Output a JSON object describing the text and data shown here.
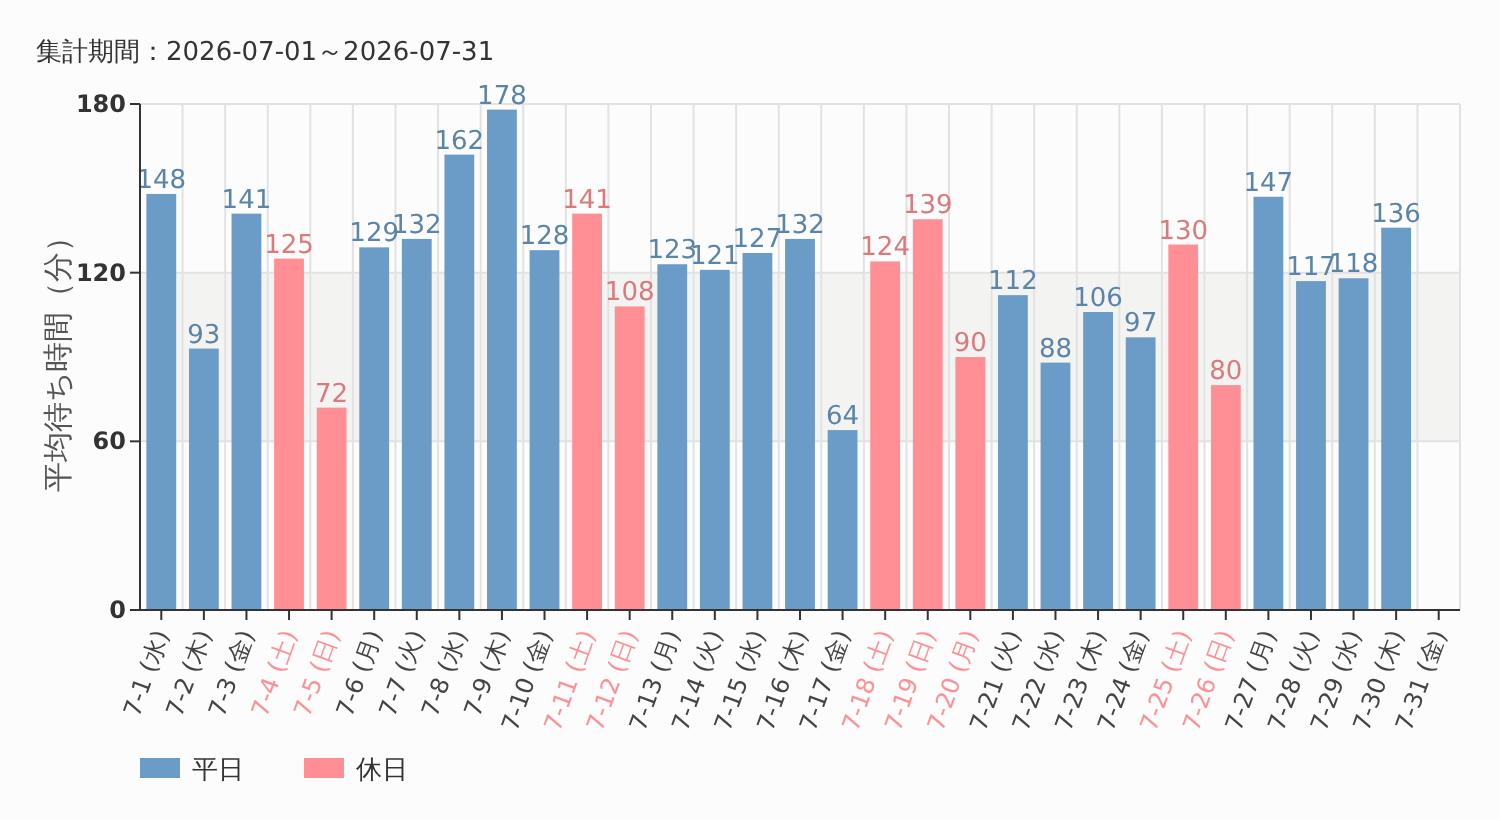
{
  "chart_data": {
    "type": "bar",
    "title": "集計期間：2026-07-01～2026-07-31",
    "ylabel": "平均待ち時間（分）",
    "categories": [
      "7-1 (水)",
      "7-2 (木)",
      "7-3 (金)",
      "7-4 (土)",
      "7-5 (日)",
      "7-6 (月)",
      "7-7 (火)",
      "7-8 (水)",
      "7-9 (木)",
      "7-10 (金)",
      "7-11 (土)",
      "7-12 (日)",
      "7-13 (月)",
      "7-14 (火)",
      "7-15 (水)",
      "7-16 (木)",
      "7-17 (金)",
      "7-18 (土)",
      "7-19 (日)",
      "7-20 (月)",
      "7-21 (火)",
      "7-22 (水)",
      "7-23 (木)",
      "7-24 (金)",
      "7-25 (土)",
      "7-26 (日)",
      "7-27 (月)",
      "7-28 (火)",
      "7-29 (水)",
      "7-30 (木)",
      "7-31 (金)"
    ],
    "series": [
      {
        "name": "平日",
        "color": "#6b9bc7",
        "values": [
          148,
          93,
          141,
          null,
          null,
          129,
          132,
          162,
          178,
          128,
          null,
          null,
          123,
          121,
          127,
          132,
          64,
          null,
          null,
          null,
          112,
          88,
          106,
          97,
          null,
          null,
          147,
          117,
          118,
          136,
          null
        ]
      },
      {
        "name": "休日",
        "color": "#ff8f94",
        "values": [
          null,
          null,
          null,
          125,
          72,
          null,
          null,
          null,
          null,
          null,
          141,
          108,
          null,
          null,
          null,
          null,
          null,
          124,
          139,
          90,
          null,
          null,
          null,
          null,
          130,
          80,
          null,
          null,
          null,
          null,
          null
        ]
      }
    ],
    "ylim": [
      0,
      180
    ],
    "yticks": [
      0,
      60,
      120,
      180
    ],
    "grid": true,
    "legend": "bottom left",
    "data_labels": true,
    "bands": [
      {
        "axis": "y",
        "from": 60,
        "to": 120,
        "color": "#f3f4f2"
      }
    ]
  }
}
